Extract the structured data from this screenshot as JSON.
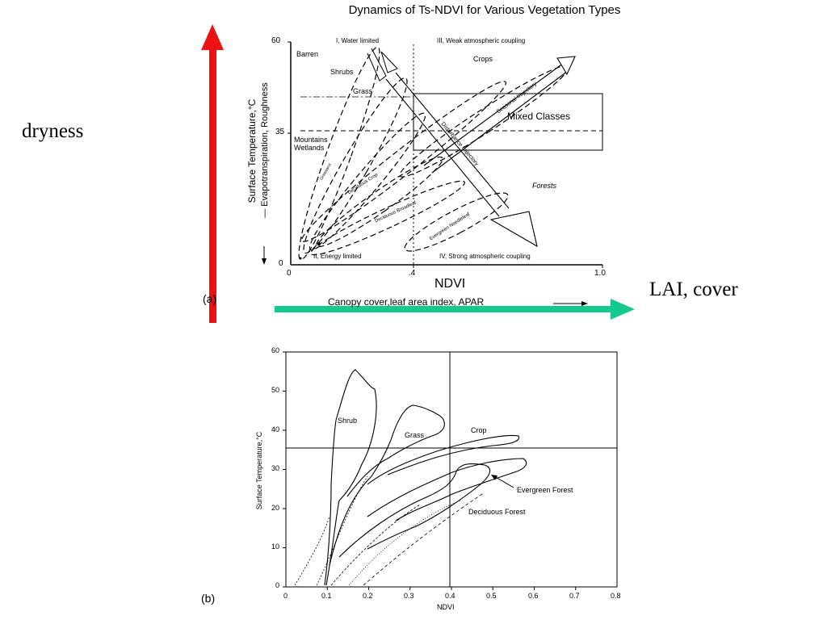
{
  "top_panel": {
    "title": "Dynamics of Ts-NDVI for Various Vegetation Types",
    "y_label_1": "Surface Temperature,°C",
    "y_label_2": "— Evapotranspiration, Roughness",
    "x_label": "NDVI",
    "x_sublabel": "Canopy cover,leaf area index, APAR",
    "y_ticks": [
      "60",
      "35",
      "0"
    ],
    "x_ticks": [
      "0",
      ".4",
      "1.0"
    ],
    "panel_tag": "(a)",
    "quadrants": {
      "q1": "I, Water limited",
      "q2": "II, Energy limited",
      "q3": "III, Weak atmospheric coupling",
      "q4": "IV, Strong atmospheric coupling"
    },
    "classes": {
      "barren": "Barren",
      "shrubs": "Shrubs",
      "grass": "Grass",
      "crops": "Crops",
      "mountains": "Mountains",
      "wetlands": "Wetlands",
      "mixed": "Mixed Classes",
      "forests": "Forests",
      "deciduous_crop": "Deciduous Crop",
      "deciduous_broadleaf": "Deciduous Broadleaf",
      "evergreen_needleleaf": "Evergreen Needleleaf",
      "grassland": "Grassland",
      "seasonal_trajectory": "Seasonal trajectory",
      "disturbance_trajectory": "Disturbance trajectory"
    }
  },
  "bottom_panel": {
    "y_label": "Surface Temperature,°C",
    "x_label": "NDVI",
    "panel_tag": "(b)",
    "y_ticks": [
      "60",
      "50",
      "40",
      "30",
      "20",
      "10",
      "0"
    ],
    "x_ticks": [
      "0",
      "0.1",
      "0.2",
      "0.3",
      "0.4",
      "0.5",
      "0.6",
      "0.7",
      "0.8"
    ],
    "labels": {
      "shrub": "Shrub",
      "grass": "Grass",
      "crop": "Crop",
      "evergreen": "Evergreen Forest",
      "deciduous": "Deciduous Forest"
    }
  },
  "annotations": {
    "dryness": "dryness",
    "lai_cover": "LAI, cover"
  },
  "colors": {
    "dryness_arrow": "#ee1111",
    "cover_arrow": "#14c98a"
  }
}
